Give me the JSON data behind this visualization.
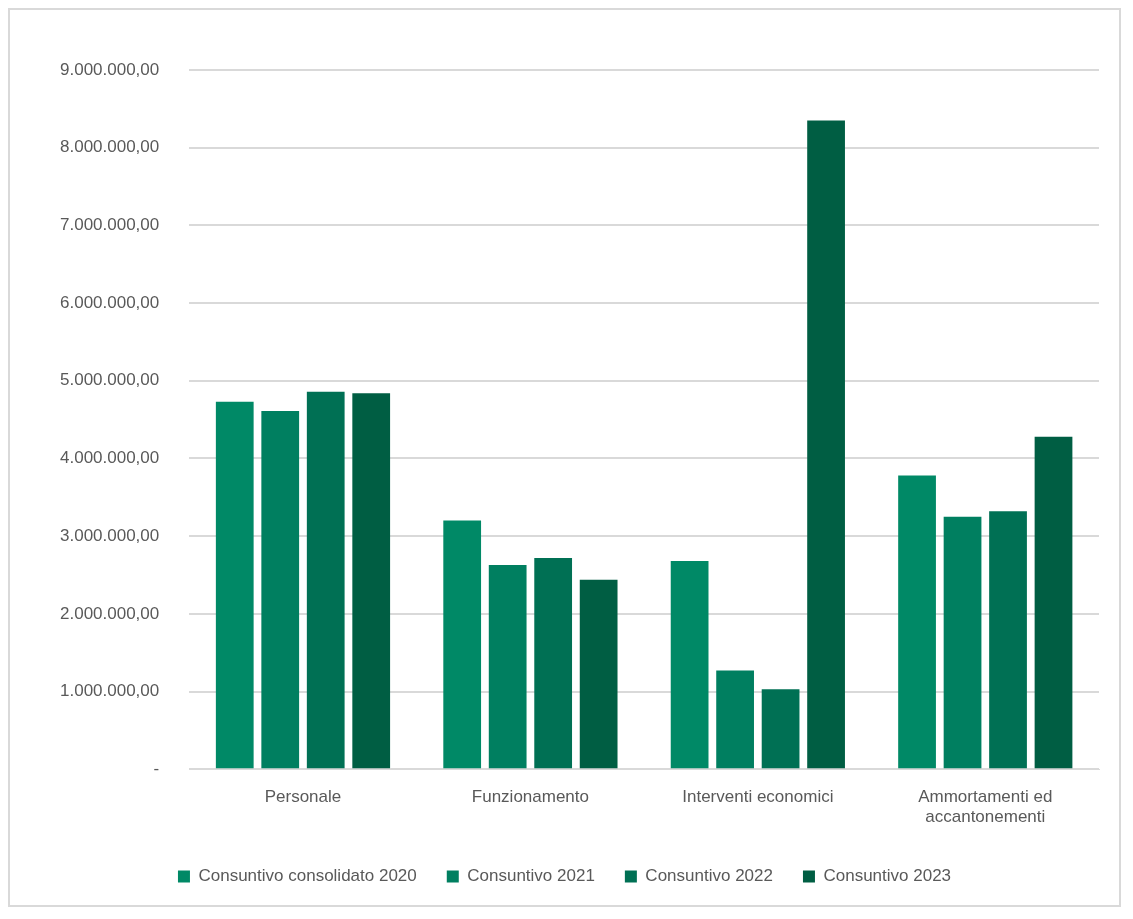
{
  "chart_data": {
    "type": "bar",
    "categories": [
      "Personale",
      "Funzionamento",
      "Interventi economici",
      "Ammortamenti ed accantonementi"
    ],
    "series": [
      {
        "name": "Consuntivo consolidato 2020",
        "color": "#008966",
        "values": [
          4730000,
          3200000,
          2680000,
          3780000
        ]
      },
      {
        "name": "Consuntivo 2021",
        "color": "#007f60",
        "values": [
          4610000,
          2630000,
          1270000,
          3250000
        ]
      },
      {
        "name": "Consuntivo 2022",
        "color": "#007054",
        "values": [
          4860000,
          2720000,
          1030000,
          3320000
        ]
      },
      {
        "name": "Consuntivo 2023",
        "color": "#005e43",
        "values": [
          4840000,
          2440000,
          8350000,
          4280000
        ]
      }
    ],
    "ylim": [
      0,
      9000000
    ],
    "yticks": [
      {
        "value": 0,
        "label": "-"
      },
      {
        "value": 1000000,
        "label": "1.000.000,00"
      },
      {
        "value": 2000000,
        "label": "2.000.000,00"
      },
      {
        "value": 3000000,
        "label": "3.000.000,00"
      },
      {
        "value": 4000000,
        "label": "4.000.000,00"
      },
      {
        "value": 5000000,
        "label": "5.000.000,00"
      },
      {
        "value": 6000000,
        "label": "6.000.000,00"
      },
      {
        "value": 7000000,
        "label": "7.000.000,00"
      },
      {
        "value": 8000000,
        "label": "8.000.000,00"
      },
      {
        "value": 9000000,
        "label": "9.000.000,00"
      }
    ],
    "grid": "y",
    "legend": "bottom"
  }
}
